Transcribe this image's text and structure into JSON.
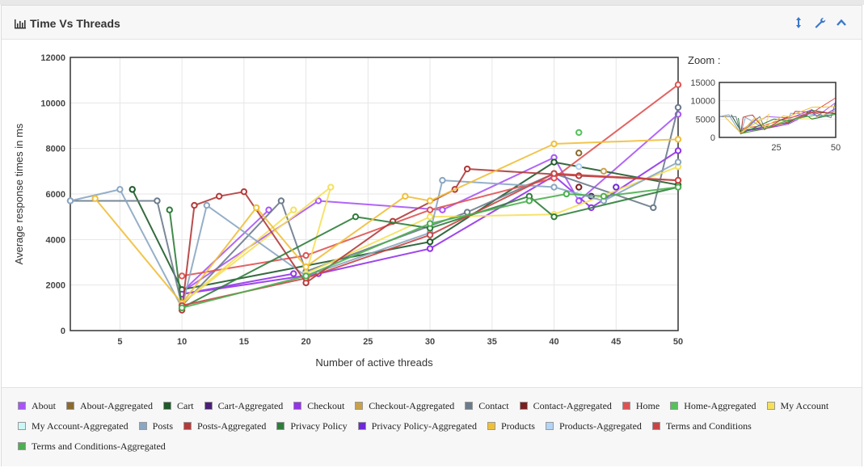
{
  "panel": {
    "title": "Time Vs Threads",
    "icons": {
      "title": "bar-chart-icon",
      "resize": "resize-vertical-icon",
      "settings": "wrench-icon",
      "collapse": "chevron-up-icon"
    }
  },
  "zoom": {
    "label": "Zoom :"
  },
  "chart_data": {
    "type": "line",
    "xlabel": "Number of active threads",
    "ylabel": "Average response times in ms",
    "xlim": [
      1,
      50
    ],
    "ylim": [
      0,
      12000
    ],
    "xticks": [
      5,
      10,
      15,
      20,
      25,
      30,
      35,
      40,
      45,
      50
    ],
    "yticks": [
      0,
      2000,
      4000,
      6000,
      8000,
      10000,
      12000
    ],
    "grid": true,
    "zoom_chart": {
      "type": "line",
      "ylim": [
        0,
        15000
      ],
      "yticks": [
        0,
        5000,
        10000,
        15000
      ],
      "xticks": [
        25,
        50
      ]
    },
    "series": [
      {
        "name": "About",
        "color": "#a855f7",
        "points": [
          [
            17,
            5300
          ],
          [
            10,
            1700
          ],
          [
            21,
            5700
          ],
          [
            31,
            5300
          ],
          [
            40,
            7600
          ],
          [
            42,
            5700
          ],
          [
            50,
            9500
          ]
        ]
      },
      {
        "name": "About-Aggregated",
        "color": "#8b6a2e",
        "points": [
          [
            42,
            7800
          ]
        ]
      },
      {
        "name": "Cart",
        "color": "#1e5a2a",
        "points": [
          [
            6,
            6200
          ],
          [
            10,
            1800
          ],
          [
            30,
            3900
          ],
          [
            40,
            7400
          ],
          [
            50,
            6400
          ]
        ]
      },
      {
        "name": "Cart-Aggregated",
        "color": "#4a1f78",
        "points": [
          [
            43,
            5900
          ]
        ]
      },
      {
        "name": "Checkout",
        "color": "#9333ea",
        "points": [
          [
            19,
            2500
          ],
          [
            10,
            1600
          ],
          [
            21,
            2500
          ],
          [
            30,
            3600
          ],
          [
            40,
            6800
          ],
          [
            43,
            5400
          ],
          [
            50,
            7900
          ]
        ]
      },
      {
        "name": "Checkout-Aggregated",
        "color": "#c8a14a",
        "points": [
          [
            44,
            7000
          ]
        ]
      },
      {
        "name": "Contact",
        "color": "#6b7b8c",
        "points": [
          [
            1,
            5700
          ],
          [
            8,
            5700
          ],
          [
            10,
            1100
          ],
          [
            18,
            5700
          ],
          [
            20,
            2600
          ],
          [
            33,
            5200
          ],
          [
            40,
            6900
          ],
          [
            48,
            5400
          ],
          [
            50,
            9800
          ]
        ]
      },
      {
        "name": "Contact-Aggregated",
        "color": "#7a1f1f",
        "points": [
          [
            42,
            6300
          ]
        ]
      },
      {
        "name": "Home",
        "color": "#e05252",
        "points": [
          [
            10,
            2400
          ],
          [
            20,
            3300
          ],
          [
            30,
            5300
          ],
          [
            40,
            6700
          ],
          [
            50,
            10800
          ]
        ]
      },
      {
        "name": "Home-Aggregated",
        "color": "#55c15a",
        "points": [
          [
            42,
            8700
          ]
        ]
      },
      {
        "name": "My Account",
        "color": "#f5e05a",
        "points": [
          [
            19,
            5300
          ],
          [
            10,
            1200
          ],
          [
            22,
            6300
          ],
          [
            20,
            2500
          ],
          [
            30,
            5000
          ],
          [
            40,
            5100
          ],
          [
            50,
            7200
          ]
        ]
      },
      {
        "name": "My Account-Aggregated",
        "color": "#ccf7f7",
        "points": [
          [
            42,
            6000
          ]
        ]
      },
      {
        "name": "Posts",
        "color": "#8aa6c2",
        "points": [
          [
            1,
            5700
          ],
          [
            5,
            6200
          ],
          [
            10,
            1000
          ],
          [
            12,
            5500
          ],
          [
            20,
            2400
          ],
          [
            30,
            4300
          ],
          [
            31,
            6600
          ],
          [
            40,
            6300
          ],
          [
            44,
            5700
          ],
          [
            50,
            7400
          ]
        ]
      },
      {
        "name": "Posts-Aggregated",
        "color": "#b33a3a",
        "points": [
          [
            10,
            900
          ],
          [
            11,
            5500
          ],
          [
            13,
            5900
          ],
          [
            15,
            6100
          ],
          [
            20,
            2100
          ],
          [
            27,
            4800
          ],
          [
            32,
            6200
          ],
          [
            33,
            7100
          ],
          [
            42,
            6800
          ],
          [
            50,
            6600
          ]
        ]
      },
      {
        "name": "Privacy Policy",
        "color": "#2e7d3a",
        "points": [
          [
            9,
            5300
          ],
          [
            10,
            1000
          ],
          [
            24,
            5000
          ],
          [
            30,
            4500
          ],
          [
            38,
            5900
          ],
          [
            40,
            5000
          ],
          [
            50,
            6300
          ]
        ]
      },
      {
        "name": "Privacy Policy-Aggregated",
        "color": "#6d28d9",
        "points": [
          [
            45,
            6300
          ]
        ]
      },
      {
        "name": "Products",
        "color": "#f0bf3a",
        "points": [
          [
            3,
            5800
          ],
          [
            10,
            1200
          ],
          [
            16,
            5400
          ],
          [
            20,
            2800
          ],
          [
            28,
            5900
          ],
          [
            30,
            5700
          ],
          [
            40,
            8200
          ],
          [
            50,
            8400
          ]
        ]
      },
      {
        "name": "Products-Aggregated",
        "color": "#b3d4f5",
        "points": [
          [
            42,
            7200
          ]
        ]
      },
      {
        "name": "Terms and Conditions",
        "color": "#c94545",
        "points": [
          [
            10,
            1100
          ],
          [
            20,
            2300
          ],
          [
            30,
            4200
          ],
          [
            40,
            6900
          ],
          [
            50,
            6600
          ]
        ]
      },
      {
        "name": "Terms and Conditions-Aggregated",
        "color": "#4caf50",
        "points": [
          [
            10,
            1000
          ],
          [
            20,
            2400
          ],
          [
            30,
            4700
          ],
          [
            38,
            5700
          ],
          [
            41,
            6000
          ],
          [
            44,
            5900
          ],
          [
            50,
            6300
          ]
        ]
      }
    ]
  }
}
